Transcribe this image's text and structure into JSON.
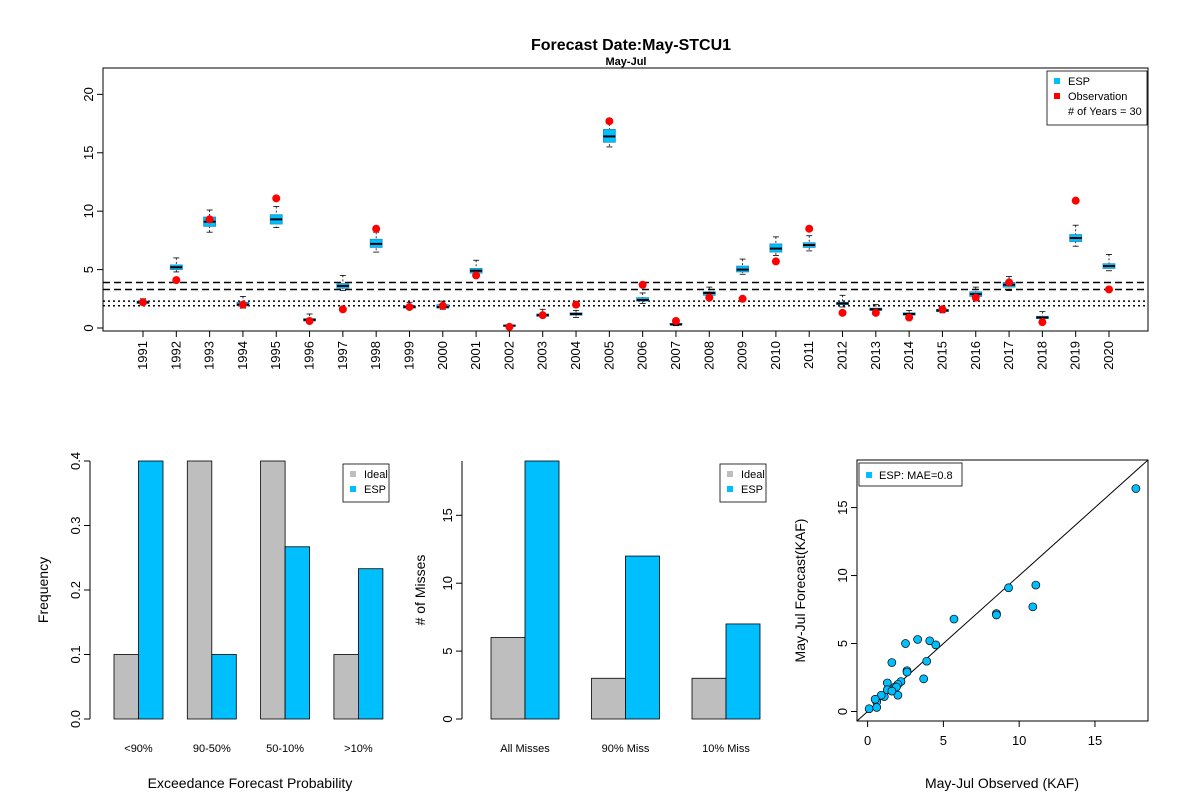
{
  "title": "Forecast Date:May-STCU1",
  "subtitle": "May-Jul",
  "colors": {
    "esp": "#00BFFF",
    "ideal": "#BEBEBE",
    "obs": "#FF0000",
    "box": "#1E90C8"
  },
  "chart_data": [
    {
      "type": "box",
      "name": "timeseries",
      "ylim": [
        0,
        22
      ],
      "yticks": [
        0,
        5,
        10,
        15,
        20
      ],
      "years": [
        "1991",
        "1992",
        "1993",
        "1994",
        "1995",
        "1996",
        "1997",
        "1998",
        "1999",
        "2000",
        "2001",
        "2002",
        "2003",
        "2004",
        "2005",
        "2006",
        "2007",
        "2008",
        "2009",
        "2010",
        "2011",
        "2012",
        "2013",
        "2014",
        "2015",
        "2016",
        "2017",
        "2018",
        "2019",
        "2020"
      ],
      "box_stats": [
        [
          2.0,
          2.1,
          2.2,
          2.3,
          2.5
        ],
        [
          4.8,
          5.0,
          5.2,
          5.4,
          6.0
        ],
        [
          8.2,
          8.7,
          9.1,
          9.5,
          10.1
        ],
        [
          1.7,
          1.9,
          2.0,
          2.2,
          2.7
        ],
        [
          8.6,
          8.9,
          9.3,
          9.7,
          10.4
        ],
        [
          0.5,
          0.6,
          0.7,
          0.8,
          1.2
        ],
        [
          3.2,
          3.4,
          3.6,
          3.8,
          4.5
        ],
        [
          6.5,
          6.9,
          7.2,
          7.6,
          8.2
        ],
        [
          1.6,
          1.7,
          1.8,
          1.9,
          2.2
        ],
        [
          1.6,
          1.7,
          1.8,
          2.0,
          2.3
        ],
        [
          4.4,
          4.7,
          4.9,
          5.1,
          5.8
        ],
        [
          0.1,
          0.15,
          0.2,
          0.25,
          0.3
        ],
        [
          0.9,
          1.0,
          1.1,
          1.2,
          1.6
        ],
        [
          0.9,
          1.1,
          1.2,
          1.3,
          1.5
        ],
        [
          15.5,
          15.9,
          16.4,
          17.0,
          17.8
        ],
        [
          2.1,
          2.3,
          2.4,
          2.6,
          3.0
        ],
        [
          0.2,
          0.3,
          0.3,
          0.4,
          0.5
        ],
        [
          2.6,
          2.8,
          3.0,
          3.1,
          3.5
        ],
        [
          4.6,
          4.8,
          5.0,
          5.3,
          5.9
        ],
        [
          6.2,
          6.5,
          6.8,
          7.2,
          7.8
        ],
        [
          6.6,
          6.9,
          7.1,
          7.3,
          7.9
        ],
        [
          1.8,
          2.0,
          2.1,
          2.2,
          2.8
        ],
        [
          1.3,
          1.5,
          1.6,
          1.7,
          2.0
        ],
        [
          1.0,
          1.1,
          1.2,
          1.3,
          1.5
        ],
        [
          1.3,
          1.4,
          1.5,
          1.6,
          1.8
        ],
        [
          2.5,
          2.7,
          2.9,
          3.1,
          3.5
        ],
        [
          3.2,
          3.5,
          3.7,
          3.9,
          4.4
        ],
        [
          0.7,
          0.8,
          0.9,
          1.0,
          1.4
        ],
        [
          7.0,
          7.4,
          7.7,
          8.0,
          8.8
        ],
        [
          4.9,
          5.1,
          5.3,
          5.5,
          6.3
        ]
      ],
      "observations": [
        2.2,
        4.1,
        9.3,
        2.0,
        11.1,
        0.6,
        1.6,
        8.5,
        1.8,
        1.9,
        4.5,
        0.1,
        1.1,
        2.0,
        17.7,
        3.7,
        0.6,
        2.6,
        2.5,
        5.7,
        8.5,
        1.3,
        1.3,
        0.9,
        1.6,
        2.6,
        3.9,
        0.5,
        10.9,
        3.3
      ],
      "hlines_dashed": [
        3.9,
        3.3
      ],
      "hlines_dotted": [
        2.3,
        1.9
      ],
      "legend": [
        "ESP",
        "Observation",
        "# of Years = 30"
      ]
    },
    {
      "type": "bar",
      "name": "exceedance",
      "categories": [
        "<90%",
        "90-50%",
        "50-10%",
        ">10%"
      ],
      "series": [
        {
          "name": "Ideal",
          "values": [
            0.1,
            0.4,
            0.4,
            0.1
          ]
        },
        {
          "name": "ESP",
          "values": [
            0.4,
            0.1,
            0.267,
            0.233
          ]
        }
      ],
      "xlabel": "Exceedance Forecast Probability",
      "ylabel": "Frequency",
      "ylim": [
        0,
        0.4
      ],
      "yticks": [
        "0.0",
        "0.1",
        "0.2",
        "0.3",
        "0.4"
      ]
    },
    {
      "type": "bar",
      "name": "misses",
      "categories": [
        "All Misses",
        "90% Miss",
        "10% Miss"
      ],
      "series": [
        {
          "name": "Ideal",
          "values": [
            6,
            3,
            3
          ]
        },
        {
          "name": "ESP",
          "values": [
            19,
            12,
            7
          ]
        }
      ],
      "xlabel": "",
      "ylabel": "# of Misses",
      "ylim": [
        0,
        19
      ],
      "yticks": [
        "0",
        "5",
        "10",
        "15"
      ]
    },
    {
      "type": "scatter",
      "name": "obs-vs-fcst",
      "xlabel": "May-Jul Observed (KAF)",
      "ylabel": "May-Jul Forecast(KAF)",
      "xlim": [
        -0.7,
        18.5
      ],
      "ylim": [
        -0.7,
        18.5
      ],
      "xticks": [
        "0",
        "5",
        "10",
        "15"
      ],
      "yticks": [
        "0",
        "5",
        "10",
        "15"
      ],
      "legend": "ESP: MAE=0.8",
      "points": [
        [
          2.2,
          2.2
        ],
        [
          4.1,
          5.2
        ],
        [
          9.3,
          9.1
        ],
        [
          2.0,
          2.0
        ],
        [
          11.1,
          9.3
        ],
        [
          0.6,
          0.7
        ],
        [
          1.6,
          3.6
        ],
        [
          8.5,
          7.2
        ],
        [
          1.8,
          1.8
        ],
        [
          1.9,
          1.8
        ],
        [
          4.5,
          4.9
        ],
        [
          0.1,
          0.2
        ],
        [
          1.1,
          1.1
        ],
        [
          2.0,
          1.2
        ],
        [
          17.7,
          16.4
        ],
        [
          3.7,
          2.4
        ],
        [
          0.6,
          0.3
        ],
        [
          2.6,
          3.0
        ],
        [
          2.5,
          5.0
        ],
        [
          5.7,
          6.8
        ],
        [
          8.5,
          7.1
        ],
        [
          1.3,
          2.1
        ],
        [
          1.3,
          1.6
        ],
        [
          0.9,
          1.2
        ],
        [
          1.6,
          1.5
        ],
        [
          2.6,
          2.9
        ],
        [
          3.9,
          3.7
        ],
        [
          0.5,
          0.9
        ],
        [
          10.9,
          7.7
        ],
        [
          3.3,
          5.3
        ]
      ]
    }
  ]
}
